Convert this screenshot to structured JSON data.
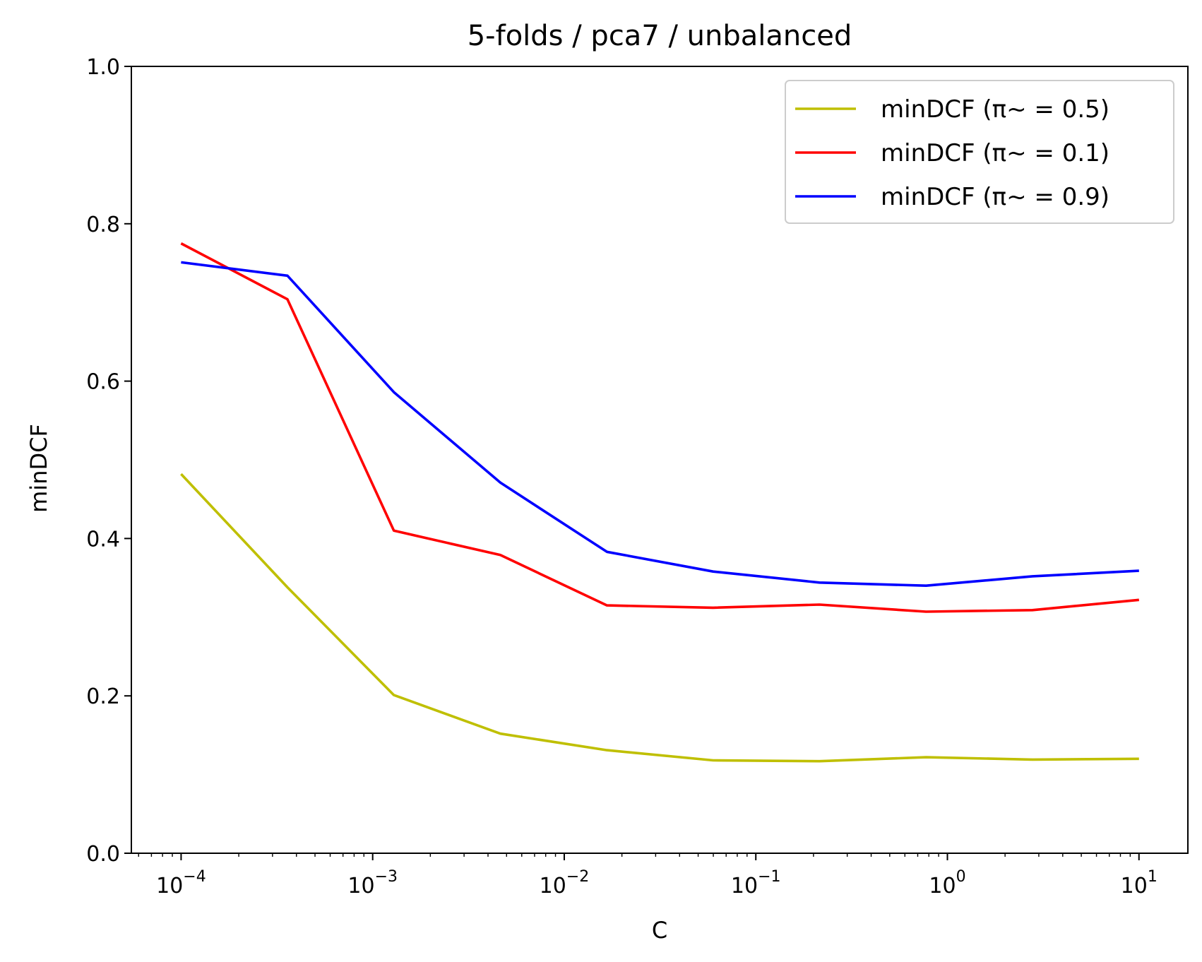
{
  "chart_data": {
    "type": "line",
    "title": "5-folds / pca7 / unbalanced",
    "xlabel": "C",
    "ylabel": "minDCF",
    "xscale": "log",
    "xlim": [
      5.5e-05,
      18
    ],
    "ylim": [
      0,
      1.0
    ],
    "yticks": [
      "0.0",
      "0.2",
      "0.4",
      "0.6",
      "0.8",
      "1.0"
    ],
    "xticks": [
      {
        "base": "10",
        "exp": "−4",
        "value": 0.0001
      },
      {
        "base": "10",
        "exp": "−3",
        "value": 0.001
      },
      {
        "base": "10",
        "exp": "−2",
        "value": 0.01
      },
      {
        "base": "10",
        "exp": "−1",
        "value": 0.1
      },
      {
        "base": "10",
        "exp": "0",
        "value": 1
      },
      {
        "base": "10",
        "exp": "1",
        "value": 10
      }
    ],
    "x": [
      0.0001,
      0.000359,
      0.00129,
      0.00464,
      0.0167,
      0.0599,
      0.215,
      0.774,
      2.78,
      10
    ],
    "legend_position": "upper-right",
    "grid": false,
    "series": [
      {
        "name": "minDCF (π~ = 0.5)",
        "color": "#bfbf00",
        "values": [
          0.482,
          0.338,
          0.201,
          0.152,
          0.131,
          0.118,
          0.117,
          0.122,
          0.119,
          0.12
        ]
      },
      {
        "name": "minDCF (π~ = 0.1)",
        "color": "#ff0000",
        "values": [
          0.775,
          0.704,
          0.41,
          0.379,
          0.315,
          0.312,
          0.316,
          0.307,
          0.309,
          0.322
        ]
      },
      {
        "name": "minDCF (π~ = 0.9)",
        "color": "#0000ff",
        "values": [
          0.751,
          0.734,
          0.586,
          0.471,
          0.383,
          0.358,
          0.344,
          0.34,
          0.352,
          0.359
        ]
      }
    ]
  }
}
